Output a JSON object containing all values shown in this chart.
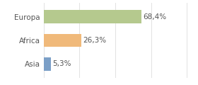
{
  "categories": [
    "Europa",
    "Africa",
    "Asia"
  ],
  "values": [
    68.4,
    26.3,
    5.3
  ],
  "labels": [
    "68,4%",
    "26,3%",
    "5,3%"
  ],
  "bar_colors": [
    "#b5c98e",
    "#f0b97a",
    "#7b9fc7"
  ],
  "background_color": "#ffffff",
  "xlim": [
    0,
    105
  ],
  "bar_height": 0.55,
  "label_fontsize": 7.5,
  "category_fontsize": 7.5,
  "grid_color": "#dddddd",
  "text_color": "#555555"
}
